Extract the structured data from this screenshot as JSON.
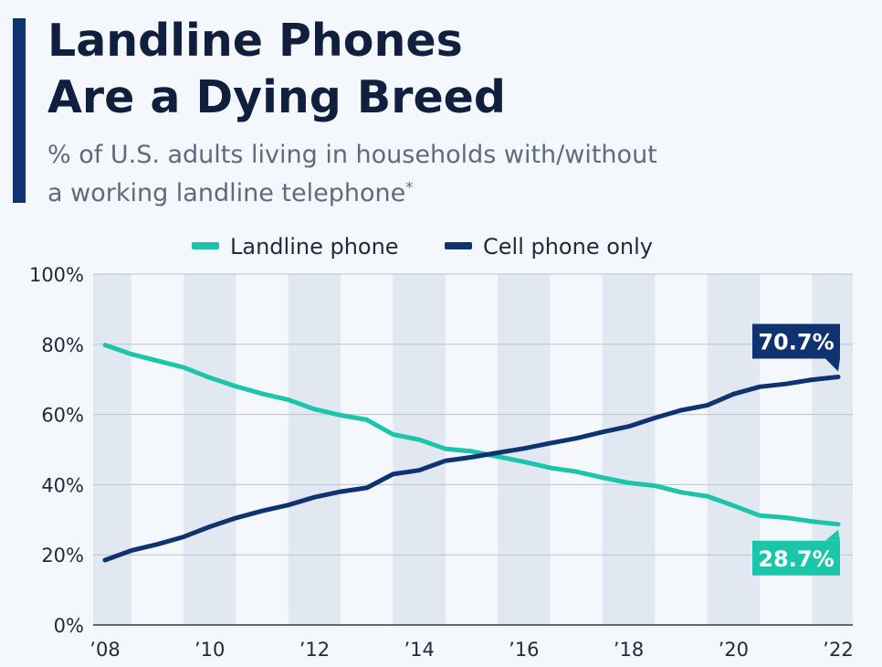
{
  "header": {
    "title_line1": "Landline Phones",
    "title_line2": "Are a Dying Breed",
    "subtitle_line1": "% of U.S. adults living in households with/without",
    "subtitle_line2": "a working landline telephone",
    "footnote_mark": "*"
  },
  "chart_data": {
    "type": "line",
    "x": [
      2008,
      2008.5,
      2009,
      2009.5,
      2010,
      2010.5,
      2011,
      2011.5,
      2012,
      2012.5,
      2013,
      2013.5,
      2014,
      2014.5,
      2015,
      2015.5,
      2016,
      2016.5,
      2017,
      2017.5,
      2018,
      2018.5,
      2019,
      2019.5,
      2020,
      2020.5,
      2021,
      2021.5,
      2022
    ],
    "x_tick_values": [
      2008,
      2010,
      2012,
      2014,
      2016,
      2018,
      2020,
      2022
    ],
    "x_tick_labels": [
      "’08",
      "’10",
      "’12",
      "’14",
      "’16",
      "’18",
      "’20",
      "’22"
    ],
    "y_tick_values": [
      0,
      20,
      40,
      60,
      80,
      100
    ],
    "y_tick_labels": [
      "0%",
      "20%",
      "40%",
      "60%",
      "80%",
      "100%"
    ],
    "ylim": [
      0,
      100
    ],
    "xlim": [
      2008,
      2022
    ],
    "grid": true,
    "legend_position": "top-center",
    "series": [
      {
        "name": "Landline phone",
        "color": "#1bc5aa",
        "values": [
          79.8,
          77.2,
          75.3,
          73.4,
          70.5,
          68.0,
          65.9,
          64.2,
          61.5,
          59.8,
          58.5,
          54.3,
          52.8,
          50.2,
          49.5,
          48.0,
          46.5,
          44.8,
          43.7,
          42.0,
          40.5,
          39.7,
          37.8,
          36.7,
          34.0,
          31.2,
          30.6,
          29.5,
          28.7
        ],
        "end_label": "28.7%"
      },
      {
        "name": "Cell phone only",
        "color": "#0f3270",
        "values": [
          18.5,
          21.2,
          23.0,
          25.1,
          28.0,
          30.5,
          32.5,
          34.2,
          36.4,
          38.0,
          39.1,
          43.0,
          44.1,
          46.8,
          47.8,
          49.1,
          50.3,
          51.8,
          53.2,
          55.0,
          56.6,
          59.0,
          61.2,
          62.6,
          65.8,
          67.9,
          68.7,
          69.9,
          70.7
        ],
        "end_label": "70.7%"
      }
    ]
  }
}
